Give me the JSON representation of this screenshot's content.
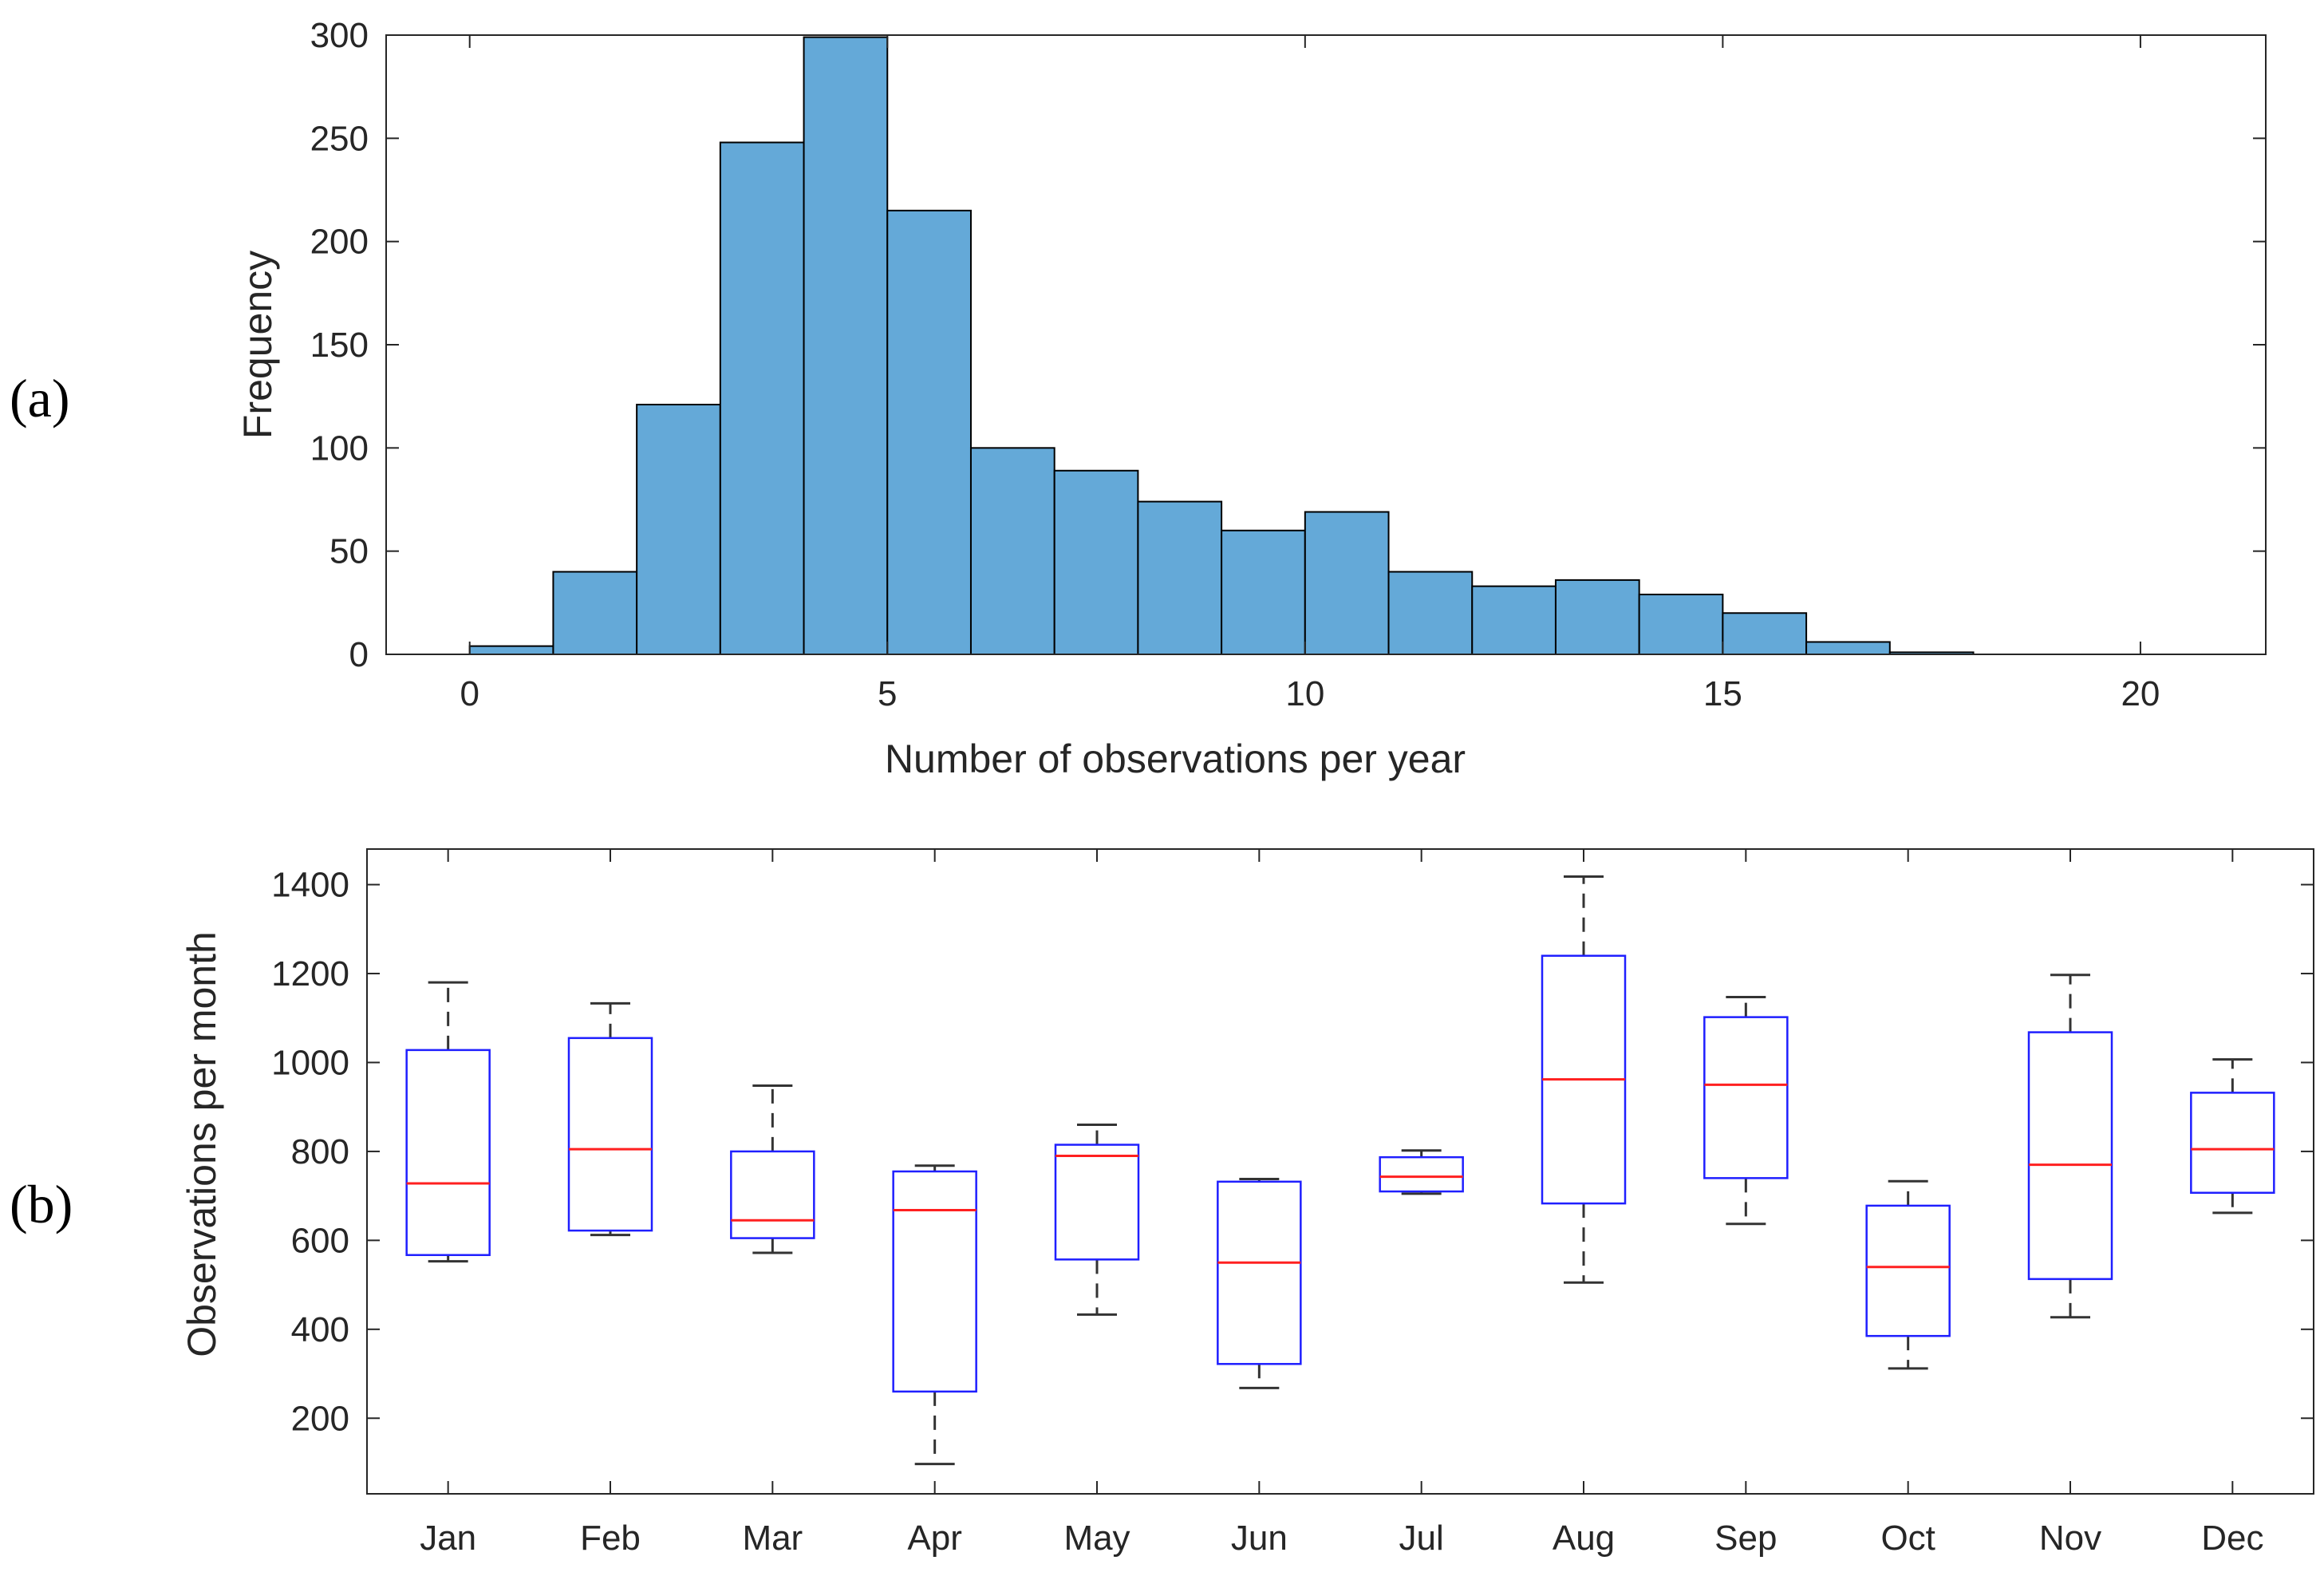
{
  "figure": {
    "panel_a_label": "(a)",
    "panel_b_label": "(b)"
  },
  "chart_data": [
    {
      "type": "bar",
      "subtype": "histogram",
      "xlabel": "Number of observations per year",
      "ylabel": "Frequency",
      "xlim": [
        -1,
        21.5
      ],
      "ylim": [
        0,
        300
      ],
      "xticks": [
        0,
        5,
        10,
        15,
        20
      ],
      "yticks": [
        0,
        50,
        100,
        150,
        200,
        250,
        300
      ],
      "bin_edges": [
        0,
        1,
        2,
        3,
        4,
        5,
        6,
        7,
        8,
        9,
        10,
        11,
        12,
        13,
        14,
        15,
        16,
        17,
        18
      ],
      "values": [
        4,
        40,
        121,
        248,
        299,
        215,
        100,
        89,
        74,
        60,
        69,
        40,
        33,
        36,
        29,
        20,
        6,
        1
      ],
      "colors": {
        "bar_fill": "#64a9d8",
        "bar_edge": "#000000"
      },
      "grid": false
    },
    {
      "type": "boxplot",
      "xlabel": "",
      "ylabel": "Observations per month",
      "ylim": [
        30,
        1480
      ],
      "yticks": [
        200,
        400,
        600,
        800,
        1000,
        1200,
        1400
      ],
      "categories": [
        "Jan",
        "Feb",
        "Mar",
        "Apr",
        "May",
        "Jun",
        "Jul",
        "Aug",
        "Sep",
        "Oct",
        "Nov",
        "Dec"
      ],
      "boxes": [
        {
          "min": 553,
          "q1": 567,
          "median": 728,
          "q3": 1028,
          "max": 1180
        },
        {
          "min": 612,
          "q1": 622,
          "median": 805,
          "q3": 1055,
          "max": 1133
        },
        {
          "min": 572,
          "q1": 605,
          "median": 645,
          "q3": 800,
          "max": 948
        },
        {
          "min": 97,
          "q1": 260,
          "median": 668,
          "q3": 755,
          "max": 768
        },
        {
          "min": 433,
          "q1": 557,
          "median": 790,
          "q3": 815,
          "max": 860
        },
        {
          "min": 268,
          "q1": 322,
          "median": 550,
          "q3": 732,
          "max": 738
        },
        {
          "min": 705,
          "q1": 710,
          "median": 743,
          "q3": 787,
          "max": 802
        },
        {
          "min": 505,
          "q1": 683,
          "median": 962,
          "q3": 1240,
          "max": 1418
        },
        {
          "min": 637,
          "q1": 740,
          "median": 950,
          "q3": 1102,
          "max": 1147
        },
        {
          "min": 312,
          "q1": 385,
          "median": 540,
          "q3": 678,
          "max": 733
        },
        {
          "min": 427,
          "q1": 513,
          "median": 770,
          "q3": 1068,
          "max": 1197
        },
        {
          "min": 662,
          "q1": 707,
          "median": 805,
          "q3": 932,
          "max": 1007
        }
      ],
      "colors": {
        "box": "#1f1fff",
        "median": "#ff2020",
        "whisker": "#333333"
      },
      "grid": false
    }
  ]
}
